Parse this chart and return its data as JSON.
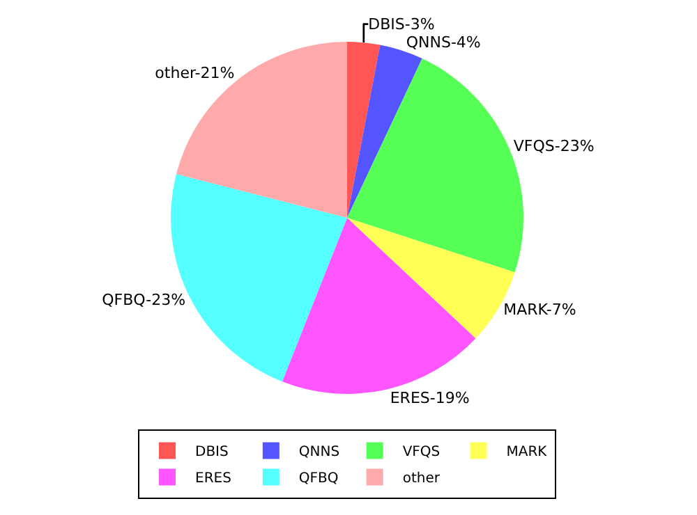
{
  "chart_data": {
    "type": "pie",
    "categories": [
      "DBIS",
      "QNNS",
      "VFQS",
      "MARK",
      "ERES",
      "QFBQ",
      "other"
    ],
    "values": [
      3,
      4,
      23,
      7,
      19,
      23,
      21
    ],
    "colors": [
      "#ff5555",
      "#5555ff",
      "#55ff55",
      "#ffff55",
      "#ff55ff",
      "#55ffff",
      "#ffaaaa"
    ],
    "value_labels": [
      "DBIS-3%",
      "QNNS-4%",
      "VFQS-23%",
      "MARK-7%",
      "ERES-19%",
      "QFBQ-23%",
      "other-21%"
    ],
    "legend": "bottom"
  }
}
